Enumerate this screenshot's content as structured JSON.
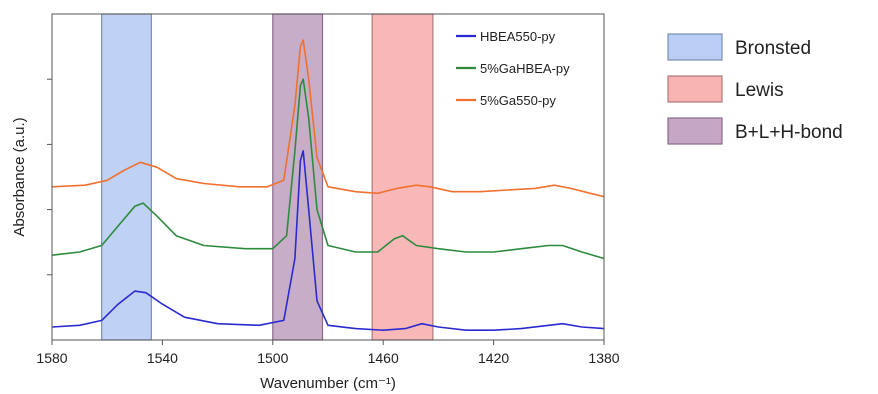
{
  "chart_data": {
    "type": "line",
    "xlabel": "Wavenumber (cm⁻¹)",
    "ylabel": "Absorbance (a.u.)",
    "xlim": [
      1580,
      1380
    ],
    "x_reversed": true,
    "x_ticks": [
      1580,
      1540,
      1500,
      1460,
      1420,
      1380
    ],
    "y_ticks_labeled": false,
    "grid": false,
    "legend_position": "top-right inside plot",
    "series": [
      {
        "name": "HBEA550-py",
        "color": "#2a2ad0",
        "points": [
          [
            1580,
            0.04
          ],
          [
            1570,
            0.045
          ],
          [
            1562,
            0.06
          ],
          [
            1556,
            0.11
          ],
          [
            1550,
            0.15
          ],
          [
            1546,
            0.145
          ],
          [
            1540,
            0.11
          ],
          [
            1532,
            0.07
          ],
          [
            1520,
            0.05
          ],
          [
            1505,
            0.045
          ],
          [
            1496,
            0.06
          ],
          [
            1492,
            0.25
          ],
          [
            1490,
            0.55
          ],
          [
            1489,
            0.58
          ],
          [
            1487,
            0.4
          ],
          [
            1484,
            0.12
          ],
          [
            1480,
            0.045
          ],
          [
            1470,
            0.035
          ],
          [
            1460,
            0.03
          ],
          [
            1452,
            0.035
          ],
          [
            1446,
            0.05
          ],
          [
            1440,
            0.04
          ],
          [
            1430,
            0.03
          ],
          [
            1420,
            0.03
          ],
          [
            1410,
            0.035
          ],
          [
            1400,
            0.045
          ],
          [
            1395,
            0.05
          ],
          [
            1388,
            0.04
          ],
          [
            1380,
            0.035
          ]
        ]
      },
      {
        "name": "5%GaHBEA-py",
        "color": "#2e8b3e",
        "points": [
          [
            1580,
            0.26
          ],
          [
            1570,
            0.27
          ],
          [
            1562,
            0.29
          ],
          [
            1556,
            0.35
          ],
          [
            1550,
            0.41
          ],
          [
            1547,
            0.42
          ],
          [
            1542,
            0.38
          ],
          [
            1535,
            0.32
          ],
          [
            1525,
            0.29
          ],
          [
            1510,
            0.28
          ],
          [
            1500,
            0.28
          ],
          [
            1495,
            0.32
          ],
          [
            1492,
            0.58
          ],
          [
            1490,
            0.78
          ],
          [
            1489,
            0.8
          ],
          [
            1487,
            0.68
          ],
          [
            1484,
            0.4
          ],
          [
            1480,
            0.29
          ],
          [
            1470,
            0.27
          ],
          [
            1462,
            0.27
          ],
          [
            1456,
            0.31
          ],
          [
            1453,
            0.32
          ],
          [
            1448,
            0.29
          ],
          [
            1440,
            0.28
          ],
          [
            1430,
            0.27
          ],
          [
            1420,
            0.27
          ],
          [
            1410,
            0.28
          ],
          [
            1400,
            0.29
          ],
          [
            1395,
            0.29
          ],
          [
            1388,
            0.27
          ],
          [
            1380,
            0.25
          ]
        ]
      },
      {
        "name": "5%Ga550-py",
        "color": "#f07030",
        "points": [
          [
            1580,
            0.47
          ],
          [
            1568,
            0.475
          ],
          [
            1560,
            0.49
          ],
          [
            1554,
            0.52
          ],
          [
            1548,
            0.545
          ],
          [
            1542,
            0.53
          ],
          [
            1535,
            0.495
          ],
          [
            1525,
            0.48
          ],
          [
            1512,
            0.47
          ],
          [
            1502,
            0.47
          ],
          [
            1496,
            0.49
          ],
          [
            1492,
            0.72
          ],
          [
            1490,
            0.9
          ],
          [
            1489,
            0.92
          ],
          [
            1487,
            0.8
          ],
          [
            1484,
            0.56
          ],
          [
            1480,
            0.47
          ],
          [
            1470,
            0.455
          ],
          [
            1462,
            0.45
          ],
          [
            1455,
            0.465
          ],
          [
            1448,
            0.475
          ],
          [
            1443,
            0.47
          ],
          [
            1435,
            0.455
          ],
          [
            1425,
            0.455
          ],
          [
            1415,
            0.46
          ],
          [
            1405,
            0.465
          ],
          [
            1398,
            0.475
          ],
          [
            1392,
            0.465
          ],
          [
            1385,
            0.45
          ],
          [
            1380,
            0.44
          ]
        ]
      }
    ],
    "regions": [
      {
        "name": "Bronsted",
        "from": 1562,
        "to": 1544,
        "fill": "#a9c2f2",
        "stroke": "#7a8fb0"
      },
      {
        "name": "B+L+H-bond",
        "from": 1500,
        "to": 1482,
        "fill": "#b691b6",
        "stroke": "#8a6a8a"
      },
      {
        "name": "Lewis",
        "from": 1464,
        "to": 1442,
        "fill": "#f6a0a0",
        "stroke": "#b07a7a"
      }
    ],
    "region_key_order": [
      "Bronsted",
      "Lewis",
      "B+L+H-bond"
    ]
  }
}
